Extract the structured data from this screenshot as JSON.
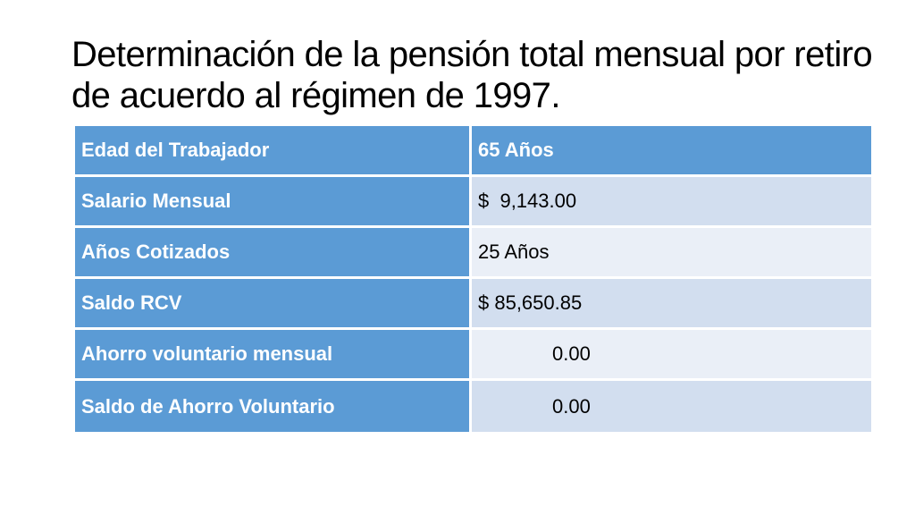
{
  "title": "Determinación de la pensión total mensual por retiro de acuerdo al régimen de 1997.",
  "table": {
    "header": {
      "label": "Edad del Trabajador",
      "value": "65 Años"
    },
    "rows": [
      {
        "label": "Salario Mensual",
        "value": "$  9,143.00"
      },
      {
        "label": "Años Cotizados",
        "value": "25 Años"
      },
      {
        "label": "Saldo RCV",
        "value": "$ 85,650.85"
      },
      {
        "label": "Ahorro voluntario mensual",
        "value": "0.00"
      },
      {
        "label": "Saldo de Ahorro Voluntario",
        "value": "0.00"
      }
    ]
  },
  "colors": {
    "header_fill": "#5b9bd5",
    "band_dark": "#d2deef",
    "band_light": "#eaeff7"
  }
}
